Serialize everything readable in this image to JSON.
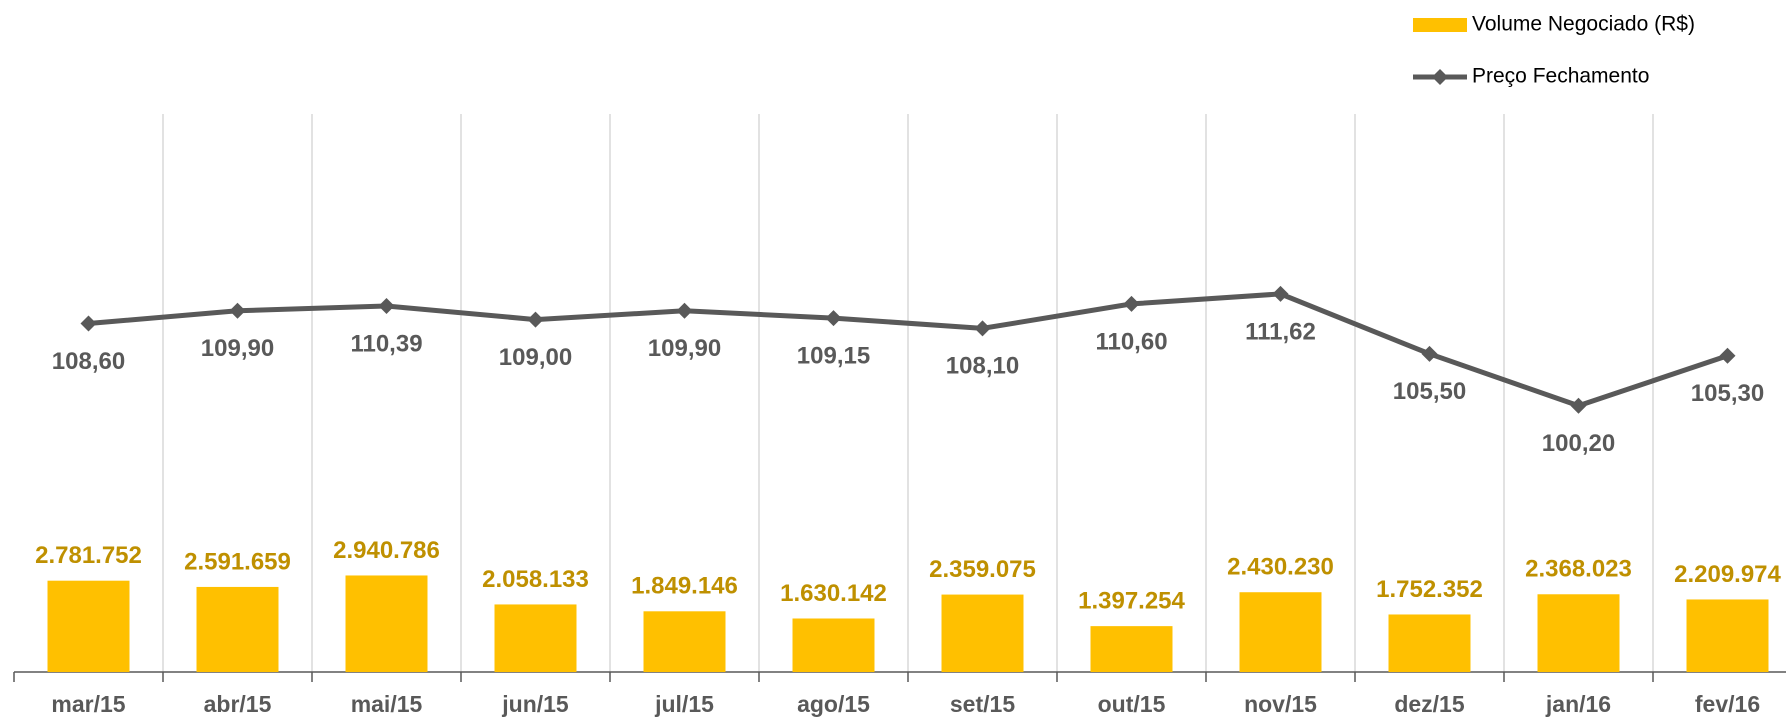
{
  "chart_data": {
    "type": "bar_line",
    "categories": [
      "mar/15",
      "abr/15",
      "mai/15",
      "jun/15",
      "jul/15",
      "ago/15",
      "set/15",
      "out/15",
      "nov/15",
      "dez/15",
      "jan/16",
      "fev/16"
    ],
    "series": [
      {
        "name": "Volume Negociado (R$)",
        "type": "bar",
        "color": "#FFC000",
        "label_color": "#BF9000",
        "values": [
          2781752,
          2591659,
          2940786,
          2058133,
          1849146,
          1630142,
          2359075,
          1397254,
          2430230,
          1752352,
          2368023,
          2209974
        ],
        "value_labels": [
          "2.781.752",
          "2.591.659",
          "2.940.786",
          "2.058.133",
          "1.849.146",
          "1.630.142",
          "2.359.075",
          "1.397.254",
          "2.430.230",
          "1.752.352",
          "2.368.023",
          "2.209.974"
        ]
      },
      {
        "name": "Preço Fechamento",
        "type": "line",
        "axis": "y2",
        "color": "#595959",
        "label_color": "#595959",
        "values": [
          108.6,
          109.9,
          110.39,
          109.0,
          109.9,
          109.15,
          108.1,
          110.6,
          111.62,
          105.5,
          100.2,
          105.3
        ],
        "value_labels": [
          "108,60",
          "109,90",
          "110,39",
          "109,00",
          "109,90",
          "109,15",
          "108,10",
          "110,60",
          "111,62",
          "105,50",
          "100,20",
          "105,30"
        ]
      }
    ],
    "ylim": [
      0,
      17000000
    ],
    "y2lim": [
      73,
      130
    ],
    "legend": "top-right"
  }
}
